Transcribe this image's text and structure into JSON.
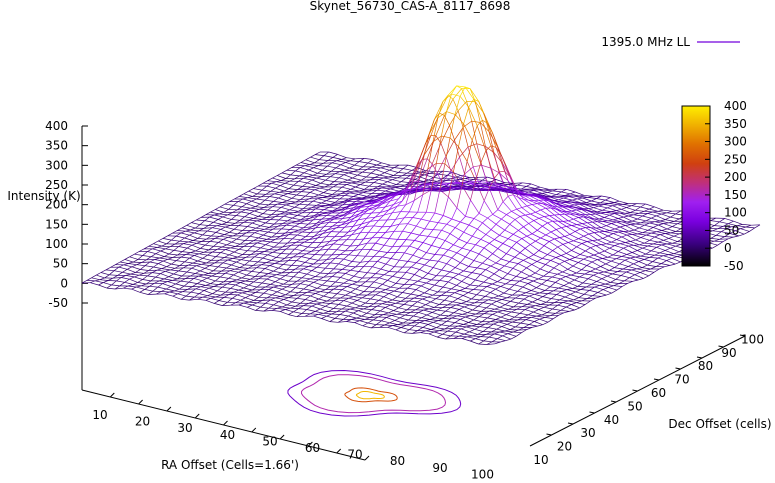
{
  "chart_data": {
    "type": "surface3d",
    "title": "Skynet_56730_CAS-A_8117_8698",
    "legend": {
      "label": "1395.0 MHz LL",
      "placement": "top-right",
      "color": "#8a2be2"
    },
    "xlabel": "RA Offset (Cells=1.66')",
    "ylabel": "Dec Offset (cells)",
    "zlabel": "Intensity (K)",
    "x_ticks": [
      "10",
      "20",
      "30",
      "40",
      "50",
      "60",
      "70",
      "80",
      "90",
      "100"
    ],
    "y_ticks": [
      "10",
      "20",
      "30",
      "40",
      "50",
      "60",
      "70",
      "80",
      "90",
      "100"
    ],
    "z_ticks": [
      "-50",
      "0",
      "50",
      "100",
      "150",
      "200",
      "250",
      "300",
      "350",
      "400"
    ],
    "xlim": [
      0,
      100
    ],
    "ylim": [
      0,
      100
    ],
    "zlim": [
      -50,
      400
    ],
    "colorbar": {
      "ticks": [
        "400",
        "350",
        "300",
        "250",
        "200",
        "150",
        "100",
        "50",
        "0",
        "-50"
      ],
      "range": [
        -50,
        400
      ],
      "colors": [
        "#000000",
        "#3a0080",
        "#7a00e0",
        "#a020f0",
        "#c0307a",
        "#d04010",
        "#e07000",
        "#f0b000",
        "#ffee00"
      ]
    },
    "peak": {
      "x": 55,
      "y": 60,
      "z": 400
    },
    "baseline": 0,
    "contour_levels": [
      50,
      150,
      250,
      350
    ],
    "grid": false
  }
}
